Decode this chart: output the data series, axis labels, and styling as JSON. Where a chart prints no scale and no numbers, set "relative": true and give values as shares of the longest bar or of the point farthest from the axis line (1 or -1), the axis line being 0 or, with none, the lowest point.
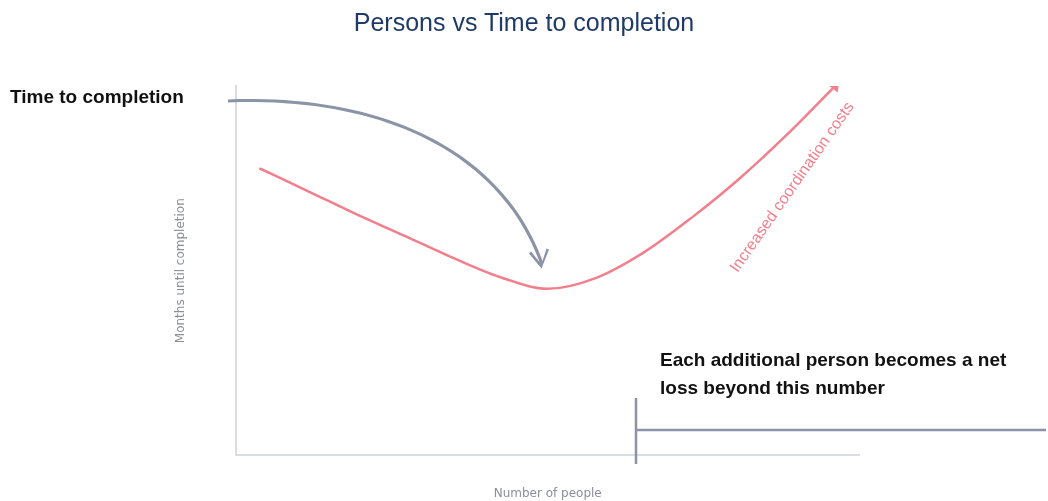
{
  "chart_data": {
    "type": "line",
    "title": "Persons vs Time to completion",
    "xlabel": "Number of people",
    "ylabel": "Months until completion",
    "relative": true,
    "categories": [
      null,
      null,
      null,
      null,
      null,
      null,
      null,
      null,
      null,
      null,
      null,
      null,
      null
    ],
    "series": [
      {
        "color": "#f47f8c",
        "values": [
          0.776,
          0.715,
          0.653,
          0.595,
          0.536,
          0.483,
          0.451,
          0.48,
          0.549,
          0.643,
          0.749,
          0.869,
          1
        ]
      }
    ],
    "annotations": [
      "Time to completion",
      "Increased coordination costs",
      "Each additional person becomes a net loss beyond this number"
    ],
    "grid": false,
    "legend": false,
    "marker": "none",
    "line_style": "solid"
  }
}
